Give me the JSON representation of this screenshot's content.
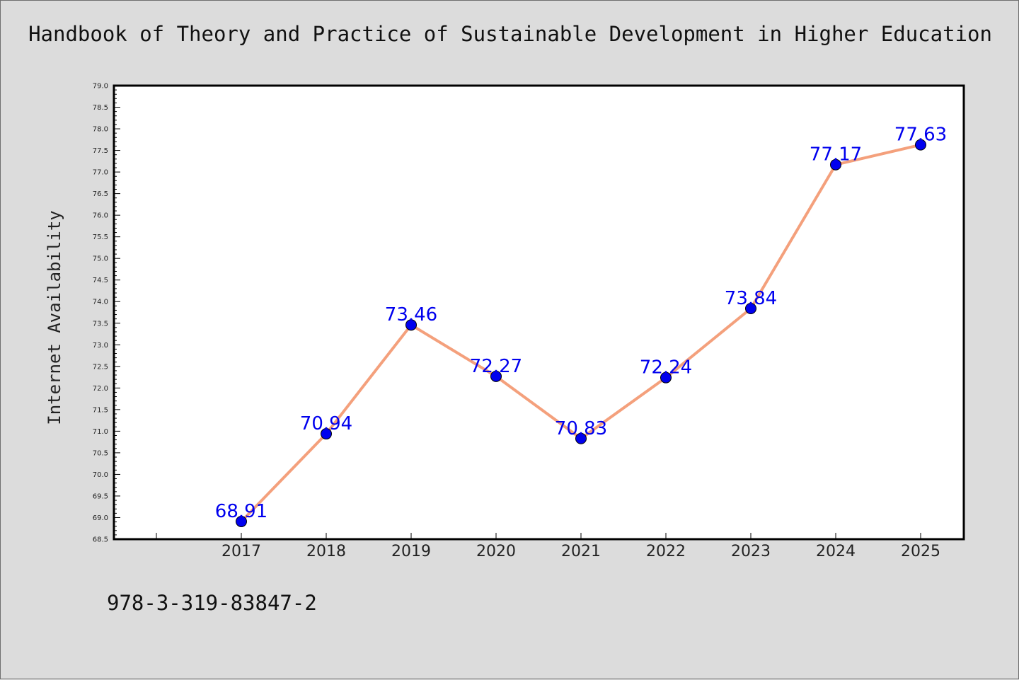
{
  "header": {
    "title": "Handbook of Theory and Practice of Sustainable Development in Higher Education"
  },
  "footer": {
    "isbn": "978-3-319-83847-2"
  },
  "colors": {
    "background": "#dcdcdc",
    "plot_bg": "#ffffff",
    "line": "#f4a07c",
    "marker": "#0000ee",
    "label": "#0000ee"
  },
  "chart_data": {
    "type": "line",
    "title": "Handbook of Theory and Practice of Sustainable Development in Higher Education",
    "xlabel": "",
    "ylabel": "Internet Availability",
    "x": [
      "2017",
      "2018",
      "2019",
      "2020",
      "2021",
      "2022",
      "2023",
      "2024",
      "2025"
    ],
    "series": [
      {
        "values": [
          68.91,
          70.94,
          73.46,
          72.27,
          70.83,
          72.24,
          73.84,
          77.17,
          77.63
        ]
      }
    ],
    "data_labels": [
      "68.91",
      "70.94",
      "73.46",
      "72.27",
      "70.83",
      "72.24",
      "73.84",
      "77.17",
      "77.63"
    ],
    "ylim": [
      68.5,
      79.0
    ],
    "y_tick_step": 0.5,
    "grid": false,
    "legend": "none"
  }
}
